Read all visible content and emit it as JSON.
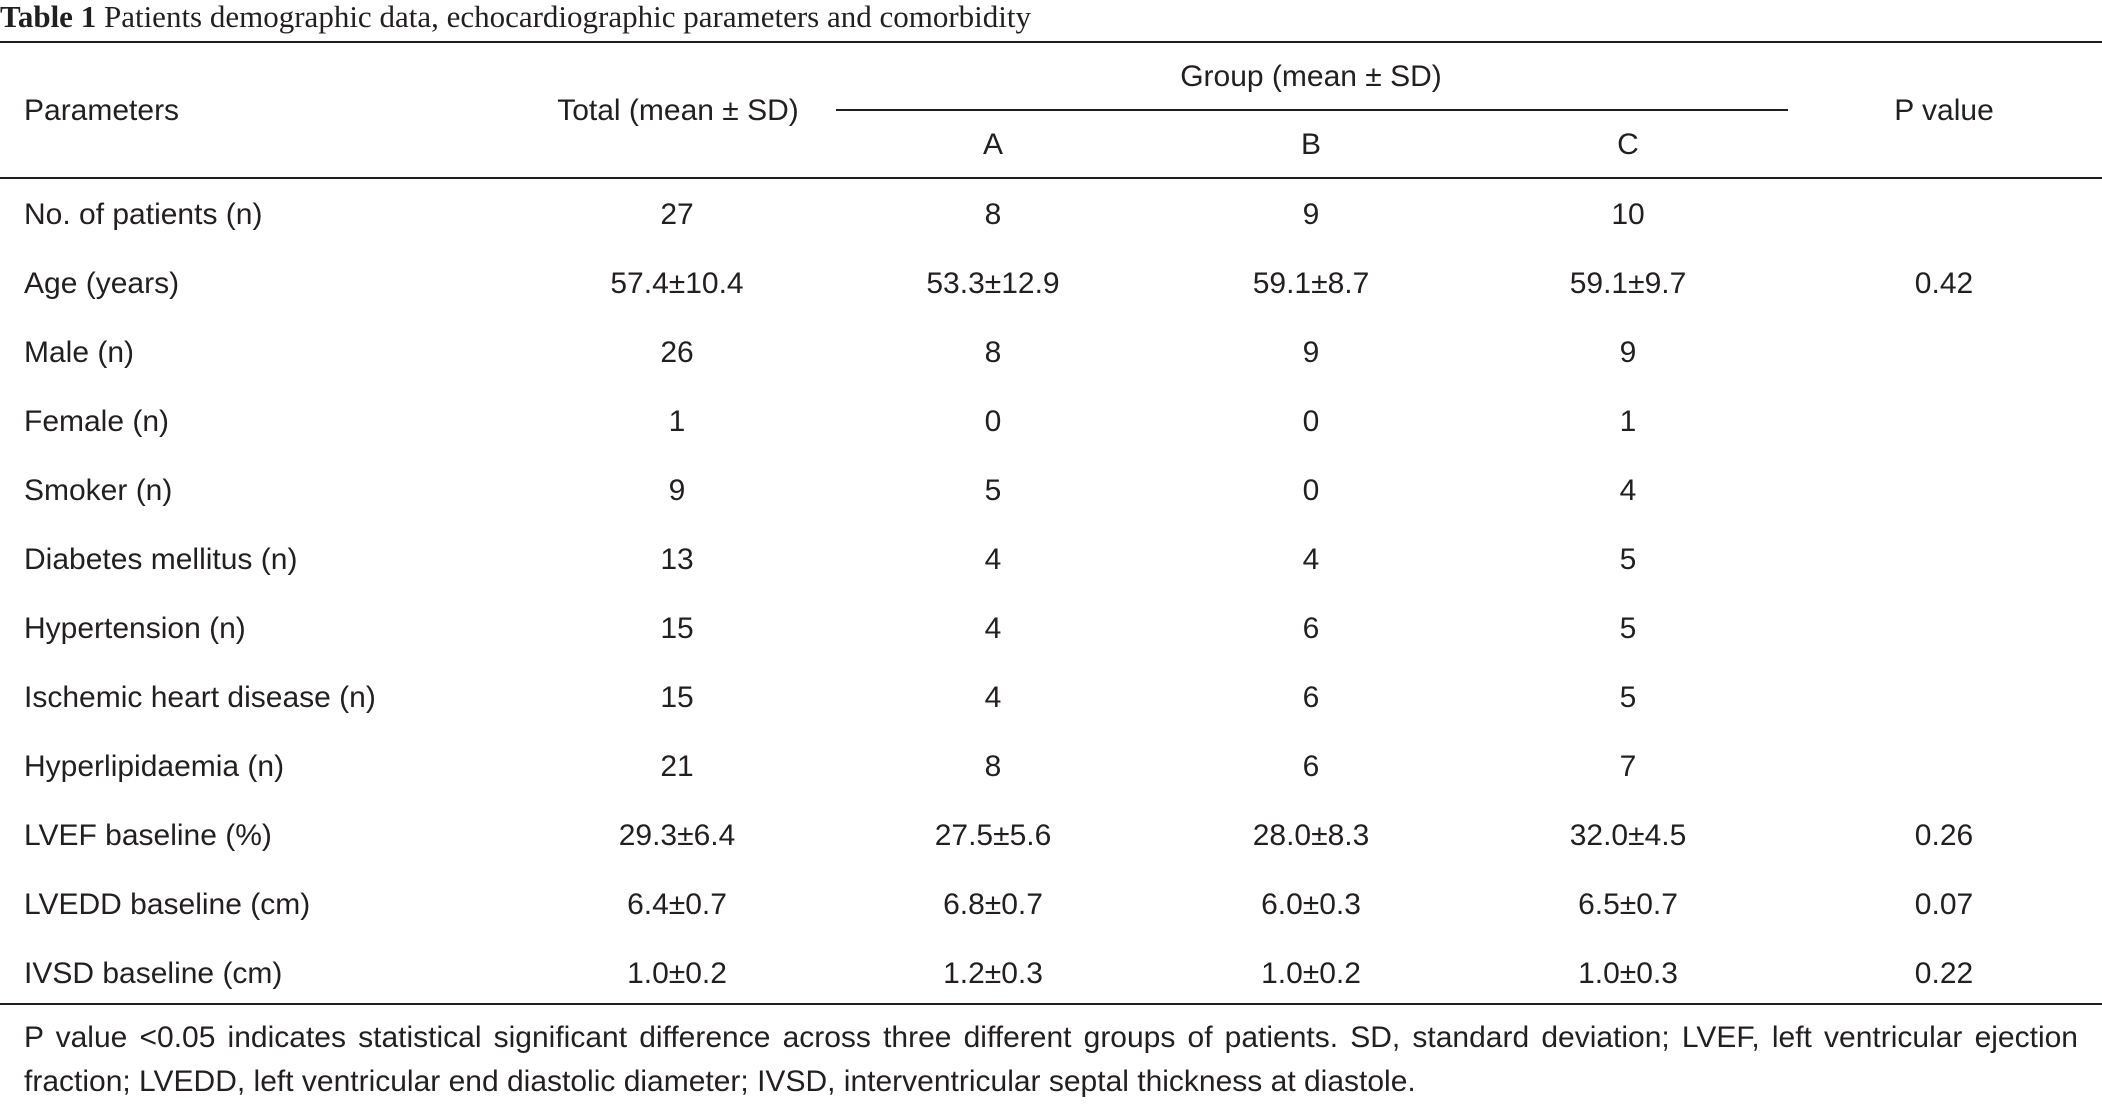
{
  "caption": {
    "label": "Table 1",
    "text": "Patients demographic data, echocardiographic parameters and comorbidity"
  },
  "headers": {
    "parameters": "Parameters",
    "total": "Total (mean ± SD)",
    "group": "Group (mean ± SD)",
    "group_a": "A",
    "group_b": "B",
    "group_c": "C",
    "p_value": "P value"
  },
  "rows": [
    {
      "parameter": "No. of patients (n)",
      "total": "27",
      "a": "8",
      "b": "9",
      "c": "10",
      "p": ""
    },
    {
      "parameter": "Age (years)",
      "total": "57.4±10.4",
      "a": "53.3±12.9",
      "b": "59.1±8.7",
      "c": "59.1±9.7",
      "p": "0.42"
    },
    {
      "parameter": "Male (n)",
      "total": "26",
      "a": "8",
      "b": "9",
      "c": "9",
      "p": ""
    },
    {
      "parameter": "Female (n)",
      "total": "1",
      "a": "0",
      "b": "0",
      "c": "1",
      "p": ""
    },
    {
      "parameter": "Smoker (n)",
      "total": "9",
      "a": "5",
      "b": "0",
      "c": "4",
      "p": ""
    },
    {
      "parameter": "Diabetes mellitus (n)",
      "total": "13",
      "a": "4",
      "b": "4",
      "c": "5",
      "p": ""
    },
    {
      "parameter": "Hypertension (n)",
      "total": "15",
      "a": "4",
      "b": "6",
      "c": "5",
      "p": ""
    },
    {
      "parameter": "Ischemic heart disease (n)",
      "total": "15",
      "a": "4",
      "b": "6",
      "c": "5",
      "p": ""
    },
    {
      "parameter": "Hyperlipidaemia (n)",
      "total": "21",
      "a": "8",
      "b": "6",
      "c": "7",
      "p": ""
    },
    {
      "parameter": "LVEF baseline (%)",
      "total": "29.3±6.4",
      "a": "27.5±5.6",
      "b": "28.0±8.3",
      "c": "32.0±4.5",
      "p": "0.26"
    },
    {
      "parameter": "LVEDD baseline (cm)",
      "total": "6.4±0.7",
      "a": "6.8±0.7",
      "b": "6.0±0.3",
      "c": "6.5±0.7",
      "p": "0.07"
    },
    {
      "parameter": "IVSD baseline (cm)",
      "total": "1.0±0.2",
      "a": "1.2±0.3",
      "b": "1.0±0.2",
      "c": "1.0±0.3",
      "p": "0.22"
    }
  ],
  "footnote": "P value <0.05 indicates statistical significant difference across three different groups of patients. SD, standard deviation; LVEF, left ventricular ejection fraction; LVEDD, left ventricular end diastolic diameter; IVSD, interventricular septal thickness at diastole."
}
